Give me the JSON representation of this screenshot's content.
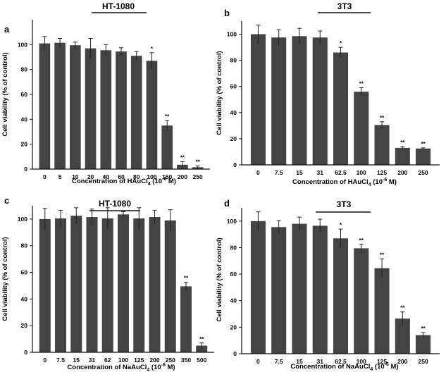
{
  "chart_data": [
    {
      "type": "bar",
      "panel": "a",
      "title": "HT-1080",
      "xlabel": {
        "prefix": "Concentration of HAuCl",
        "sub": "4",
        "mid": " (10",
        "sup": "-6",
        "suffix": " M)"
      },
      "ylabel": "Cell viability (% of control)",
      "ylim": [
        0,
        120
      ],
      "yticks": [
        0,
        20,
        40,
        60,
        80,
        100
      ],
      "categories": [
        "0",
        "5",
        "10",
        "20",
        "40",
        "60",
        "80",
        "100",
        "150",
        "200",
        "250"
      ],
      "values": [
        101,
        101.5,
        99.5,
        97,
        95.5,
        94.5,
        91,
        87,
        35,
        3.5,
        1.5
      ],
      "errors": [
        5.5,
        3.5,
        2.5,
        8,
        4.5,
        3,
        3.5,
        6.5,
        4,
        2.5,
        1
      ],
      "significance": [
        "",
        "",
        "",
        "",
        "",
        "",
        "",
        "*",
        "**",
        "**",
        "**"
      ],
      "bar_color": "#444444"
    },
    {
      "type": "bar",
      "panel": "b",
      "title": "3T3",
      "xlabel": {
        "prefix": "Concentration of HAuCl",
        "sub": "4",
        "mid": " (10",
        "sup": "-6",
        "suffix": " M)"
      },
      "ylabel": "Cell viability (% of control)",
      "ylim": [
        0,
        110
      ],
      "yticks": [
        0,
        20,
        40,
        60,
        80,
        100
      ],
      "categories": [
        "0",
        "7.5",
        "15",
        "31",
        "62.5",
        "100",
        "125",
        "200",
        "250"
      ],
      "values": [
        100,
        97.5,
        98.5,
        97.5,
        86,
        56,
        30.5,
        13,
        12.5
      ],
      "errors": [
        7,
        6,
        6,
        5,
        4,
        3,
        2.5,
        1,
        0.5
      ],
      "significance": [
        "",
        "",
        "",
        "",
        "*",
        "**",
        "**",
        "**",
        "**"
      ],
      "bar_color": "#444444"
    },
    {
      "type": "bar",
      "panel": "c",
      "title": "HT-1080",
      "xlabel": {
        "prefix": "Concentration of NaAuCl",
        "sub": "4",
        "mid": " (10",
        "sup": "-6",
        "suffix": " M)"
      },
      "ylabel": "Cell viability (% of control)",
      "ylim": [
        0,
        110
      ],
      "yticks": [
        0,
        20,
        40,
        60,
        80,
        100
      ],
      "categories": [
        "0",
        "7.5",
        "15",
        "31",
        "62",
        "100",
        "125",
        "200",
        "250",
        "350",
        "500"
      ],
      "values": [
        100,
        100.5,
        102.5,
        101.5,
        100.5,
        103.5,
        100.5,
        101.5,
        99,
        49.5,
        5
      ],
      "errors": [
        8,
        6,
        6,
        6,
        8,
        2,
        8,
        5,
        8,
        3,
        2
      ],
      "significance": [
        "",
        "",
        "",
        "",
        "",
        "",
        "",
        "",
        "",
        "**",
        "**"
      ],
      "bar_color": "#444444"
    },
    {
      "type": "bar",
      "panel": "d",
      "title": "3T3",
      "xlabel": {
        "prefix": "Concentration of NaAuCl",
        "sub": "4",
        "mid": " (10",
        "sup": "-6",
        "suffix": " M)"
      },
      "ylabel": "Cell viability (% of  control)",
      "ylim": [
        0,
        110
      ],
      "yticks": [
        0,
        20,
        40,
        60,
        80,
        100
      ],
      "categories": [
        "0",
        "7.5",
        "15",
        "31",
        "62.5",
        "100",
        "125",
        "200",
        "250"
      ],
      "values": [
        100,
        95.5,
        98,
        96.5,
        87,
        79.5,
        64.5,
        26.5,
        14
      ],
      "errors": [
        7,
        5,
        5,
        5,
        7,
        3,
        7,
        5,
        2
      ],
      "significance": [
        "",
        "",
        "",
        "",
        "*",
        "**",
        "**",
        "**",
        "**"
      ],
      "bar_color": "#444444"
    }
  ]
}
